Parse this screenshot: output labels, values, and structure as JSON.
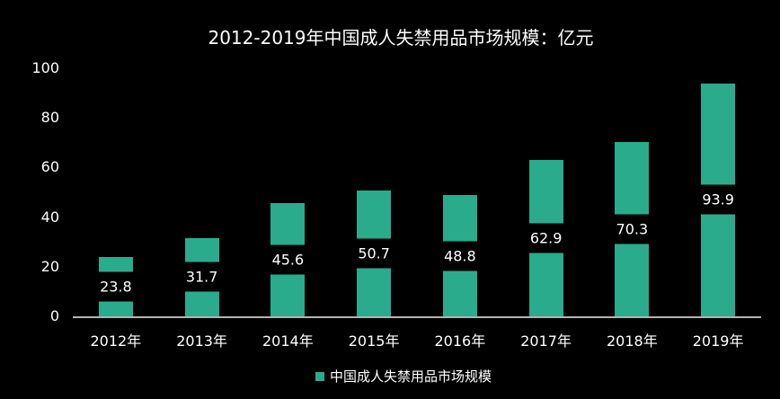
{
  "colors": {
    "background": "#000000",
    "bar": "#2aab8c",
    "text": "#ffffff",
    "axis_line": "#b3b3b3",
    "label_band": "#000000"
  },
  "chart_data": {
    "type": "bar",
    "title": "2012-2019年中国成人失禁用品市场规模：亿元",
    "categories": [
      "2012年",
      "2013年",
      "2014年",
      "2015年",
      "2016年",
      "2017年",
      "2018年",
      "2019年"
    ],
    "values": [
      23.8,
      31.7,
      45.6,
      50.7,
      48.8,
      62.9,
      70.3,
      93.9
    ],
    "value_labels": [
      "23.8",
      "31.7",
      "45.6",
      "50.7",
      "48.8",
      "62.9",
      "70.3",
      "93.9"
    ],
    "xlabel": "",
    "ylabel": "",
    "ylim": [
      0,
      100
    ],
    "yticks": [
      0,
      20,
      40,
      60,
      80,
      100
    ],
    "grid": "off",
    "legend": {
      "position": "bottom",
      "items": [
        {
          "label": "中国成人失禁用品市场规模",
          "swatch_color": "#2aab8c"
        }
      ]
    }
  }
}
